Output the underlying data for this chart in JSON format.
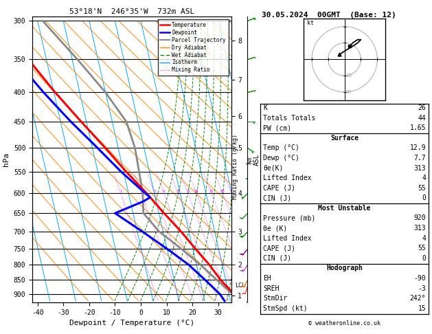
{
  "title_left": "53°18'N  246°35'W  732m ASL",
  "title_right": "30.05.2024  00GMT  (Base: 12)",
  "xlabel": "Dewpoint / Temperature (°C)",
  "ylabel_left": "hPa",
  "bg_color": "#ffffff",
  "pressure_ticks": [
    300,
    350,
    400,
    450,
    500,
    550,
    600,
    650,
    700,
    750,
    800,
    850,
    900
  ],
  "xlim": [
    -42,
    35
  ],
  "skew_slope": 22.0,
  "temp_profile": {
    "pressure": [
      925,
      900,
      850,
      800,
      750,
      700,
      650,
      600,
      550,
      500,
      450,
      400,
      350,
      300
    ],
    "temperature": [
      12.9,
      12.0,
      8.0,
      5.0,
      1.0,
      -3.0,
      -8.0,
      -13.0,
      -19.0,
      -25.0,
      -32.0,
      -39.5,
      -47.0,
      -56.0
    ],
    "color": "#ff0000",
    "linewidth": 2.2
  },
  "dewpoint_profile": {
    "pressure": [
      925,
      900,
      850,
      800,
      750,
      700,
      650,
      620,
      610,
      600,
      550,
      500,
      450,
      400,
      350,
      300
    ],
    "temperature": [
      7.7,
      6.5,
      2.0,
      -3.0,
      -10.0,
      -18.0,
      -27.0,
      -15.0,
      -12.0,
      -13.5,
      -21.0,
      -28.0,
      -36.0,
      -44.0,
      -52.0,
      -60.0
    ],
    "color": "#0000ff",
    "linewidth": 2.2
  },
  "parcel_profile": {
    "pressure": [
      925,
      900,
      850,
      800,
      750,
      700,
      650,
      600,
      550,
      500,
      450,
      400,
      350,
      300
    ],
    "temperature": [
      12.9,
      11.5,
      6.5,
      1.5,
      -4.5,
      -11.5,
      -16.0,
      -14.5,
      -14.0,
      -13.5,
      -14.5,
      -20.0,
      -28.0,
      -38.0
    ],
    "color": "#888888",
    "linewidth": 2.0
  },
  "lcl_pressure": 870,
  "lcl_label": "LCL",
  "km_ticks": [
    1,
    2,
    3,
    4,
    5,
    6,
    7,
    8
  ],
  "km_pressures": [
    905,
    800,
    700,
    600,
    500,
    440,
    380,
    325
  ],
  "mixing_ratio_values": [
    1,
    2,
    3,
    4,
    6,
    8,
    10,
    15,
    20,
    25
  ],
  "table_data": {
    "K": 26,
    "Totals Totals": 44,
    "PW (cm)": 1.65,
    "Surface_Temp": 12.9,
    "Surface_Dewp": 7.7,
    "Surface_thetae": 313,
    "Surface_LI": 4,
    "Surface_CAPE": 55,
    "Surface_CIN": 0,
    "MU_Pressure": 920,
    "MU_thetae": 313,
    "MU_LI": 4,
    "MU_CAPE": 55,
    "MU_CIN": 0,
    "Hodo_EH": -90,
    "Hodo_SREH": -3,
    "Hodo_StmDir": "242°",
    "Hodo_StmSpd": 15
  },
  "wind_barb_pressures": [
    925,
    870,
    850,
    800,
    750,
    700,
    650,
    600,
    550,
    500,
    450,
    400,
    350,
    300
  ],
  "wind_barb_u": [
    3,
    3,
    5,
    8,
    10,
    10,
    8,
    5,
    0,
    -3,
    -5,
    -8,
    -10,
    -12
  ],
  "wind_barb_v": [
    8,
    10,
    10,
    12,
    12,
    10,
    8,
    5,
    3,
    2,
    0,
    -2,
    -3,
    -5
  ],
  "hodograph_u": [
    3,
    5,
    8,
    10,
    8,
    5,
    0,
    -3
  ],
  "hodograph_v": [
    8,
    10,
    12,
    12,
    10,
    8,
    5,
    3
  ],
  "copyright": "© weatheronline.co.uk",
  "isotherm_color": "#00aaff",
  "dry_adiabat_color": "#ff8800",
  "wet_adiabat_color": "#008800",
  "mix_ratio_color": "#ff00ff"
}
